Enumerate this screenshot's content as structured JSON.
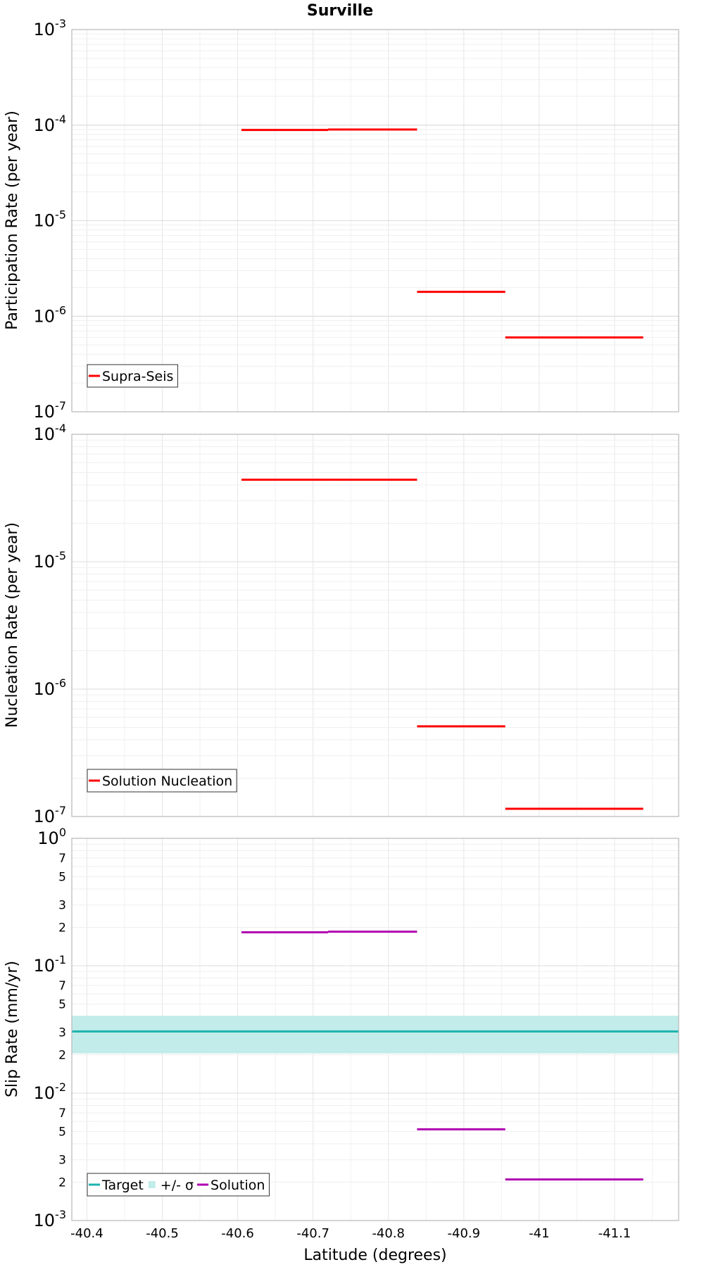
{
  "chart_data": [
    {
      "type": "line",
      "title": "Surville",
      "ylabel": "Participation Rate (per year)",
      "yscale": "log",
      "ylim": [
        1e-07,
        0.001
      ],
      "xlim": [
        -40.38,
        -41.185
      ],
      "xaxis": "reversed",
      "grid": true,
      "legend_position": "bottom-left",
      "legend": [
        "Supra-Seis"
      ],
      "ytick_labels": [
        {
          "value": 0.001,
          "base": "10",
          "exp": "-3"
        },
        {
          "value": 0.0001,
          "base": "10",
          "exp": "-4"
        },
        {
          "value": 1e-05,
          "base": "10",
          "exp": "-5"
        },
        {
          "value": 1e-06,
          "base": "10",
          "exp": "-6"
        },
        {
          "value": 1e-07,
          "base": "10",
          "exp": "-7"
        }
      ],
      "series": [
        {
          "name": "Supra-Seis",
          "color": "#ff0000",
          "segments": [
            {
              "x": [
                -40.605,
                -40.72
              ],
              "y": 8.9e-05
            },
            {
              "x": [
                -40.72,
                -40.838
              ],
              "y": 9e-05
            },
            {
              "x": [
                -40.838,
                -40.955
              ],
              "y": 1.8e-06
            },
            {
              "x": [
                -40.955,
                -41.05
              ],
              "y": 6e-07
            },
            {
              "x": [
                -41.05,
                -41.138
              ],
              "y": 6e-07
            }
          ]
        }
      ]
    },
    {
      "type": "line",
      "ylabel": "Nucleation Rate (per year)",
      "yscale": "log",
      "ylim": [
        1e-07,
        0.0001
      ],
      "xlim": [
        -40.38,
        -41.185
      ],
      "xaxis": "reversed",
      "grid": true,
      "legend_position": "bottom-left",
      "legend": [
        "Solution Nucleation"
      ],
      "ytick_labels": [
        {
          "value": 0.0001,
          "base": "10",
          "exp": "-4"
        },
        {
          "value": 1e-05,
          "base": "10",
          "exp": "-5"
        },
        {
          "value": 1e-06,
          "base": "10",
          "exp": "-6"
        },
        {
          "value": 1e-07,
          "base": "10",
          "exp": "-7"
        }
      ],
      "series": [
        {
          "name": "Solution Nucleation",
          "color": "#ff0000",
          "segments": [
            {
              "x": [
                -40.605,
                -40.72
              ],
              "y": 4.4e-05
            },
            {
              "x": [
                -40.72,
                -40.838
              ],
              "y": 4.4e-05
            },
            {
              "x": [
                -40.838,
                -40.955
              ],
              "y": 5.1e-07
            },
            {
              "x": [
                -40.955,
                -41.05
              ],
              "y": 1.15e-07
            },
            {
              "x": [
                -41.05,
                -41.138
              ],
              "y": 1.15e-07
            }
          ]
        }
      ]
    },
    {
      "type": "line",
      "ylabel": "Slip Rate (mm/yr)",
      "xlabel": "Latitude (degrees)",
      "yscale": "log",
      "ylim": [
        0.001,
        1
      ],
      "xlim": [
        -40.38,
        -41.185
      ],
      "xaxis": "reversed",
      "grid": true,
      "legend_position": "bottom-left",
      "legend": [
        "Target",
        "+/- σ",
        "Solution"
      ],
      "ytick_labels": [
        {
          "value": 1,
          "base": "10",
          "exp": "0"
        },
        {
          "value": 0.7,
          "label": "7"
        },
        {
          "value": 0.5,
          "label": "5"
        },
        {
          "value": 0.3,
          "label": "3"
        },
        {
          "value": 0.2,
          "label": "2"
        },
        {
          "value": 0.1,
          "base": "10",
          "exp": "-1"
        },
        {
          "value": 0.07,
          "label": "7"
        },
        {
          "value": 0.05,
          "label": "5"
        },
        {
          "value": 0.03,
          "label": "3"
        },
        {
          "value": 0.02,
          "label": "2"
        },
        {
          "value": 0.01,
          "base": "10",
          "exp": "-2"
        },
        {
          "value": 0.007,
          "label": "7"
        },
        {
          "value": 0.005,
          "label": "5"
        },
        {
          "value": 0.003,
          "label": "3"
        },
        {
          "value": 0.002,
          "label": "2"
        },
        {
          "value": 0.001,
          "base": "10",
          "exp": "-3"
        }
      ],
      "xtick_labels": [
        {
          "value": -40.4,
          "label": "-40.4"
        },
        {
          "value": -40.5,
          "label": "-40.5"
        },
        {
          "value": -40.6,
          "label": "-40.6"
        },
        {
          "value": -40.7,
          "label": "-40.7"
        },
        {
          "value": -40.8,
          "label": "-40.8"
        },
        {
          "value": -40.9,
          "label": "-40.9"
        },
        {
          "value": -41.0,
          "label": "-41"
        },
        {
          "value": -41.1,
          "label": "-41.1"
        }
      ],
      "band": {
        "name": "+/- σ",
        "color": "#c2ecea",
        "y_low": 0.0205,
        "y_high": 0.0405
      },
      "target": {
        "name": "Target",
        "color": "#1cb3ad",
        "y": 0.0305
      },
      "series": [
        {
          "name": "Solution",
          "color": "#b000b0",
          "segments": [
            {
              "x": [
                -40.605,
                -40.72
              ],
              "y": 0.183
            },
            {
              "x": [
                -40.72,
                -40.838
              ],
              "y": 0.185
            },
            {
              "x": [
                -40.838,
                -40.955
              ],
              "y": 0.0052
            },
            {
              "x": [
                -40.955,
                -41.05
              ],
              "y": 0.0021
            },
            {
              "x": [
                -41.05,
                -41.138
              ],
              "y": 0.0021
            }
          ]
        }
      ]
    }
  ]
}
